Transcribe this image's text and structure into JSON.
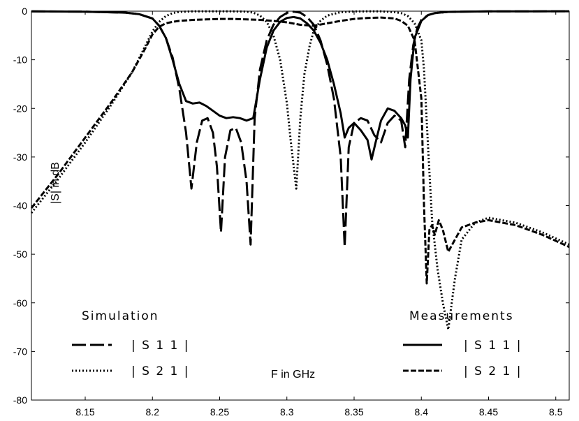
{
  "chart_data": {
    "type": "line",
    "title": "",
    "xlabel": "F  in GHz",
    "ylabel": "|S| in dB",
    "xlim": [
      8.11,
      8.51
    ],
    "ylim": [
      -80,
      0
    ],
    "xticks": [
      8.15,
      8.2,
      8.25,
      8.3,
      8.35,
      8.4,
      8.45,
      8.5
    ],
    "xtick_labels": [
      "8.15",
      "8.2",
      "8.25",
      "8.3",
      "8.35",
      "8.4",
      "8.45",
      "8.5"
    ],
    "yticks": [
      0,
      -10,
      -20,
      -30,
      -40,
      -50,
      -60,
      -70,
      -80
    ],
    "ytick_labels": [
      "0",
      "-10",
      "-20",
      "-30",
      "-40",
      "-50",
      "-60",
      "-70",
      "-80"
    ],
    "grid": false,
    "legend": {
      "simulation_title": "Simulation",
      "measurement_title": "Measurements",
      "s11_label": "| S 1 1 |",
      "s21_label": "| S 2 1 |"
    },
    "series": [
      {
        "name": "Simulation |S11|",
        "style": "long-dash",
        "x": [
          8.11,
          8.15,
          8.18,
          8.19,
          8.2,
          8.205,
          8.21,
          8.215,
          8.22,
          8.225,
          8.229,
          8.233,
          8.237,
          8.241,
          8.245,
          8.248,
          8.251,
          8.254,
          8.258,
          8.262,
          8.266,
          8.27,
          8.273,
          8.276,
          8.28,
          8.285,
          8.29,
          8.295,
          8.3,
          8.305,
          8.31,
          8.315,
          8.32,
          8.325,
          8.33,
          8.335,
          8.34,
          8.343,
          8.346,
          8.35,
          8.355,
          8.36,
          8.365,
          8.37,
          8.375,
          8.38,
          8.385,
          8.388,
          8.391,
          8.394,
          8.397,
          8.4,
          8.405,
          8.41,
          8.42,
          8.45,
          8.51
        ],
        "y": [
          -0.05,
          -0.1,
          -0.3,
          -0.6,
          -1.5,
          -3.0,
          -5.5,
          -9.5,
          -16.0,
          -25.0,
          -36.5,
          -27.0,
          -22.5,
          -22.0,
          -25.0,
          -32.0,
          -45.5,
          -30.0,
          -24.5,
          -24.0,
          -27.0,
          -35.0,
          -48.0,
          -22.0,
          -12.0,
          -6.0,
          -2.8,
          -1.2,
          -0.35,
          -0.1,
          -0.3,
          -1.2,
          -2.8,
          -6.0,
          -11.0,
          -18.0,
          -30.0,
          -48.5,
          -28.0,
          -23.0,
          -22.0,
          -22.5,
          -25.5,
          -27.0,
          -23.0,
          -21.5,
          -22.5,
          -28.0,
          -14.0,
          -7.0,
          -3.5,
          -1.8,
          -0.8,
          -0.4,
          -0.15,
          -0.05,
          -0.02
        ]
      },
      {
        "name": "Simulation |S21|",
        "style": "dotted",
        "x": [
          8.11,
          8.13,
          8.15,
          8.17,
          8.185,
          8.195,
          8.2,
          8.205,
          8.21,
          8.215,
          8.22,
          8.23,
          8.24,
          8.25,
          8.26,
          8.27,
          8.275,
          8.28,
          8.285,
          8.29,
          8.295,
          8.3,
          8.303,
          8.307,
          8.31,
          8.313,
          8.317,
          8.32,
          8.325,
          8.33,
          8.34,
          8.35,
          8.36,
          8.37,
          8.38,
          8.385,
          8.39,
          8.395,
          8.4,
          8.402,
          8.405,
          8.408,
          8.412,
          8.416,
          8.42,
          8.425,
          8.43,
          8.44,
          8.45,
          8.47,
          8.49,
          8.51
        ],
        "y": [
          -41.5,
          -34.5,
          -27.0,
          -19.0,
          -12.5,
          -7.0,
          -4.2,
          -2.2,
          -1.0,
          -0.4,
          -0.15,
          -0.05,
          -0.03,
          -0.03,
          -0.04,
          -0.1,
          -0.3,
          -0.9,
          -2.2,
          -5.0,
          -10.0,
          -19.0,
          -27.0,
          -36.5,
          -22.0,
          -13.0,
          -7.0,
          -4.0,
          -2.0,
          -0.9,
          -0.2,
          -0.06,
          -0.04,
          -0.05,
          -0.2,
          -0.4,
          -1.0,
          -2.5,
          -6.0,
          -12.0,
          -28.0,
          -43.0,
          -53.0,
          -60.0,
          -65.5,
          -55.0,
          -47.0,
          -43.5,
          -42.5,
          -43.5,
          -45.5,
          -48.0
        ]
      },
      {
        "name": "Measurements |S11|",
        "style": "solid",
        "x": [
          8.11,
          8.15,
          8.18,
          8.19,
          8.2,
          8.205,
          8.21,
          8.215,
          8.22,
          8.225,
          8.23,
          8.235,
          8.24,
          8.245,
          8.25,
          8.255,
          8.26,
          8.265,
          8.27,
          8.275,
          8.28,
          8.285,
          8.29,
          8.295,
          8.3,
          8.305,
          8.31,
          8.315,
          8.32,
          8.325,
          8.33,
          8.335,
          8.34,
          8.343,
          8.346,
          8.35,
          8.355,
          8.36,
          8.363,
          8.366,
          8.37,
          8.375,
          8.38,
          8.385,
          8.388,
          8.39,
          8.392,
          8.395,
          8.4,
          8.405,
          8.41,
          8.42,
          8.45,
          8.51
        ],
        "y": [
          -0.05,
          -0.1,
          -0.3,
          -0.6,
          -1.5,
          -3.0,
          -5.5,
          -10.0,
          -15.0,
          -18.5,
          -19.0,
          -18.8,
          -19.5,
          -20.5,
          -21.5,
          -22.0,
          -21.8,
          -22.0,
          -22.5,
          -22.0,
          -14.0,
          -7.5,
          -4.0,
          -2.2,
          -1.4,
          -1.2,
          -1.5,
          -2.5,
          -4.0,
          -6.5,
          -10.0,
          -15.0,
          -21.0,
          -26.0,
          -24.0,
          -23.0,
          -24.5,
          -26.5,
          -30.5,
          -27.0,
          -22.5,
          -20.0,
          -20.5,
          -22.0,
          -23.5,
          -26.0,
          -14.0,
          -5.5,
          -2.0,
          -0.8,
          -0.4,
          -0.15,
          -0.05,
          -0.02
        ]
      },
      {
        "name": "Measurements |S21|",
        "style": "short-dash",
        "x": [
          8.11,
          8.13,
          8.15,
          8.17,
          8.185,
          8.195,
          8.2,
          8.205,
          8.21,
          8.215,
          8.22,
          8.23,
          8.24,
          8.25,
          8.26,
          8.27,
          8.28,
          8.29,
          8.3,
          8.31,
          8.32,
          8.33,
          8.34,
          8.35,
          8.36,
          8.37,
          8.38,
          8.385,
          8.39,
          8.395,
          8.4,
          8.402,
          8.404,
          8.406,
          8.408,
          8.41,
          8.413,
          8.416,
          8.42,
          8.425,
          8.43,
          8.44,
          8.45,
          8.47,
          8.49,
          8.51
        ],
        "y": [
          -40.5,
          -33.5,
          -26.0,
          -18.5,
          -12.5,
          -7.5,
          -4.8,
          -3.2,
          -2.5,
          -2.2,
          -2.0,
          -1.8,
          -1.7,
          -1.6,
          -1.6,
          -1.7,
          -1.8,
          -2.0,
          -2.3,
          -2.8,
          -3.0,
          -2.5,
          -2.0,
          -1.6,
          -1.4,
          -1.3,
          -1.5,
          -2.0,
          -3.0,
          -6.0,
          -18.0,
          -40.0,
          -56.0,
          -45.0,
          -44.0,
          -46.0,
          -43.0,
          -45.0,
          -49.5,
          -47.0,
          -44.5,
          -43.5,
          -43.0,
          -44.0,
          -46.0,
          -48.5
        ]
      }
    ]
  }
}
